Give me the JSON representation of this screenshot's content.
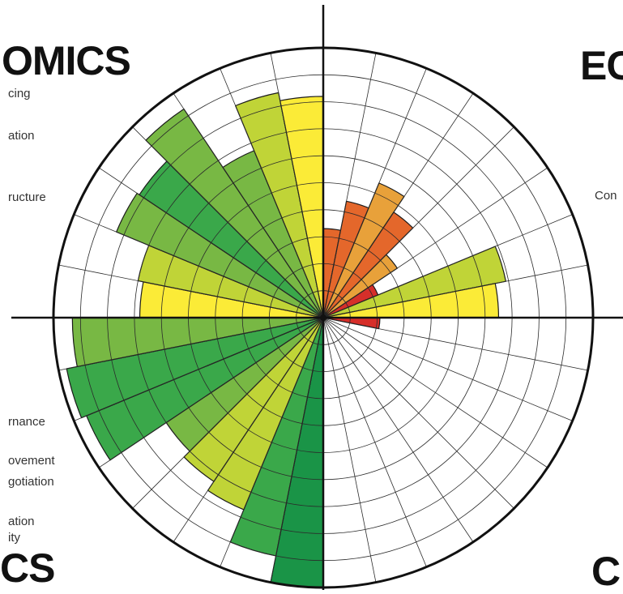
{
  "chart_data": {
    "type": "polar-bar",
    "rings": 10,
    "rmax": 10,
    "segments": 32,
    "start_direction": "north",
    "direction": "clockwise",
    "colors": {
      "dark_green": "#1a9447",
      "green": "#3aa84a",
      "mid_green": "#78b844",
      "yellow_green": "#c0d437",
      "yellow": "#fbeb37",
      "orange": "#e8a13a",
      "dark_orange": "#e4672b",
      "red": "#d62f2a"
    },
    "values": [
      3.3,
      4.4,
      5.4,
      4.7,
      3.3,
      2.2,
      6.9,
      6.5,
      2.1,
      0,
      0,
      0,
      0,
      0,
      0,
      0,
      10,
      9.0,
      7.7,
      7.3,
      7.0,
      9.5,
      9.7,
      9.3,
      6.8,
      7.0,
      8.3,
      8.2,
      9.3,
      6.7,
      8.5,
      8.2
    ],
    "segment_colors": [
      "dark_orange",
      "dark_orange",
      "orange",
      "dark_orange",
      "orange",
      "red",
      "yellow_green",
      "yellow",
      "red",
      "none",
      "none",
      "none",
      "none",
      "none",
      "none",
      "none",
      "dark_green",
      "green",
      "yellow_green",
      "yellow_green",
      "mid_green",
      "green",
      "green",
      "mid_green",
      "yellow",
      "yellow_green",
      "mid_green",
      "green",
      "mid_green",
      "mid_green",
      "yellow_green",
      "yellow"
    ]
  },
  "text_fragments": {
    "title_top_left": "OMICS",
    "title_top_right": "EC",
    "title_bottom_left": "CS",
    "title_bottom_right": "C",
    "left_upper_1": "cing",
    "left_upper_2": "ation",
    "left_upper_3": "ructure",
    "left_lower_1": "rnance",
    "left_lower_2": "ovement",
    "left_lower_3": "gotiation",
    "left_lower_4": "ation",
    "left_lower_5": "ity",
    "right_upper_1": "Con"
  }
}
